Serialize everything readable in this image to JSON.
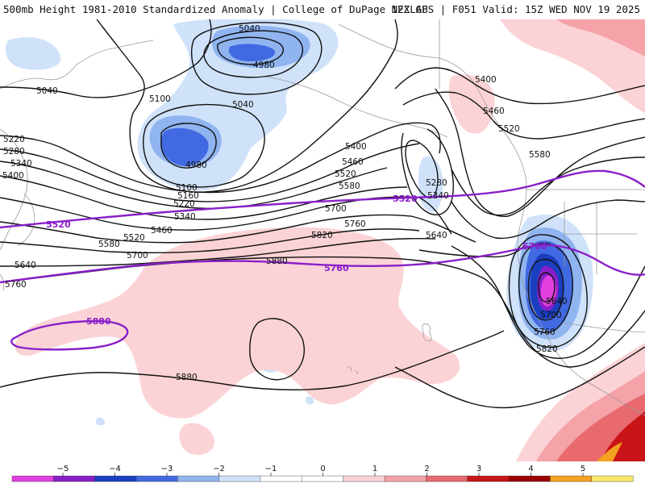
{
  "header": {
    "title_left": "500mb Height 1981-2010 Standardized Anomaly | College of DuPage NEXLAB",
    "title_right": "12Z GFS | F051 Valid: 15Z WED NOV 19 2025"
  },
  "colors": {
    "anomaly_scale": [
      "#e13fe0",
      "#8a1fc9",
      "#1a3ec0",
      "#4169e1",
      "#8fb4f0",
      "#cfe2fa",
      "#ffffff",
      "#ffffff",
      "#fbd3d6",
      "#f5a2a9",
      "#e86a6e",
      "#c91517",
      "#9a0000",
      "#f3a11f",
      "#fde86a"
    ],
    "climo_contour": "#8a1fc9",
    "height_contour": "#111111",
    "land_border": "#9a9a9a"
  },
  "contour_labels": [
    {
      "text": "5040"
    },
    {
      "text": "4980"
    },
    {
      "text": "5040"
    },
    {
      "text": "5100"
    },
    {
      "text": "5040"
    },
    {
      "text": "4980"
    },
    {
      "text": "5100"
    },
    {
      "text": "5160"
    },
    {
      "text": "5220"
    },
    {
      "text": "5220"
    },
    {
      "text": "5280"
    },
    {
      "text": "5340"
    },
    {
      "text": "5400"
    },
    {
      "text": "5340"
    },
    {
      "text": "5400"
    },
    {
      "text": "5460"
    },
    {
      "text": "5520"
    },
    {
      "text": "5580"
    },
    {
      "text": "5400"
    },
    {
      "text": "5460"
    },
    {
      "text": "5520"
    },
    {
      "text": "5580"
    },
    {
      "text": "5280"
    },
    {
      "text": "5340"
    },
    {
      "text": "5700"
    },
    {
      "text": "5760"
    },
    {
      "text": "5640"
    },
    {
      "text": "5460"
    },
    {
      "text": "5520"
    },
    {
      "text": "5580"
    },
    {
      "text": "5700"
    },
    {
      "text": "5640"
    },
    {
      "text": "5760"
    },
    {
      "text": "5820"
    },
    {
      "text": "5880"
    },
    {
      "text": "5640"
    },
    {
      "text": "5700"
    },
    {
      "text": "5760"
    },
    {
      "text": "5820"
    },
    {
      "text": "5880"
    }
  ],
  "climo_labels": [
    {
      "text": "5520"
    },
    {
      "text": "5520"
    },
    {
      "text": "5760"
    },
    {
      "text": "5760"
    },
    {
      "text": "5880"
    }
  ],
  "colorbar": {
    "ticks": [
      "−5",
      "−4",
      "−3",
      "−2",
      "−1",
      "0",
      "1",
      "2",
      "3",
      "4",
      "5"
    ]
  }
}
